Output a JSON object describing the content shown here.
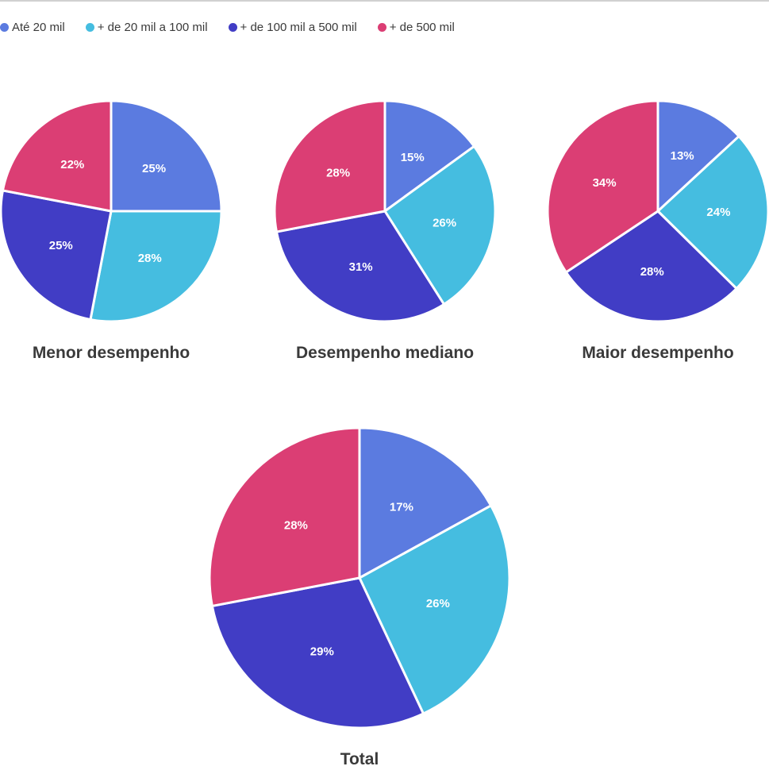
{
  "chart_data": [
    {
      "type": "pie",
      "title": "Menor desempenho",
      "categories": [
        "Até 20 mil",
        "+ de 20 mil a 100 mil",
        "+ de 100 mil a 500 mil",
        "+ de 500 mil"
      ],
      "values": [
        25,
        28,
        25,
        22
      ],
      "labels": [
        "25%",
        "28%",
        "25%",
        "22%"
      ]
    },
    {
      "type": "pie",
      "title": "Desempenho mediano",
      "categories": [
        "Até 20 mil",
        "+ de 20 mil a 100 mil",
        "+ de 100 mil a 500 mil",
        "+ de 500 mil"
      ],
      "values": [
        15,
        26,
        31,
        28
      ],
      "labels": [
        "15%",
        "26%",
        "31%",
        "28%"
      ]
    },
    {
      "type": "pie",
      "title": "Maior desempenho",
      "categories": [
        "Até 20 mil",
        "+ de 20 mil a 100 mil",
        "+ de 100 mil a 500 mil",
        "+ de 500 mil"
      ],
      "values": [
        13,
        24,
        28,
        34
      ],
      "labels": [
        "13%",
        "24%",
        "28%",
        "34%"
      ]
    },
    {
      "type": "pie",
      "title": "Total",
      "categories": [
        "Até 20 mil",
        "+ de 20 mil a 100 mil",
        "+ de 100 mil a 500 mil",
        "+ de 500 mil"
      ],
      "values": [
        17,
        26,
        29,
        28
      ],
      "labels": [
        "17%",
        "26%",
        "29%",
        "28%"
      ]
    }
  ],
  "legend": {
    "placement": "top-left",
    "items": [
      {
        "label": "Até 20 mil",
        "color": "#5B7BE0"
      },
      {
        "label": "+ de 20 mil a 100 mil",
        "color": "#45BDE0"
      },
      {
        "label": "+ de 100 mil a 500 mil",
        "color": "#413DC5"
      },
      {
        "label": "+ de 500 mil",
        "color": "#DB3E74"
      }
    ]
  }
}
